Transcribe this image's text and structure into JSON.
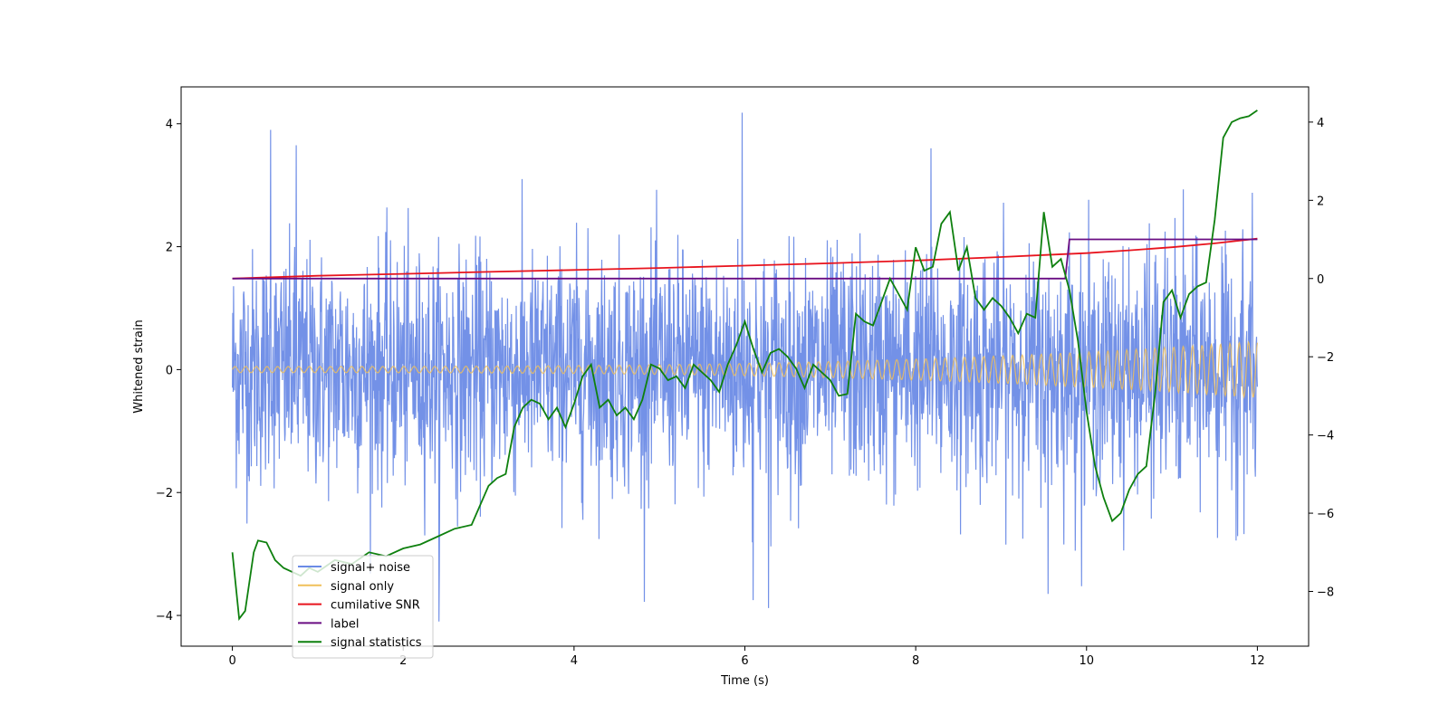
{
  "chart_data": {
    "type": "line",
    "title": "",
    "xlabel": "Time (s)",
    "ylabel": "Whitened strain",
    "xlim": [
      -0.6,
      12.6
    ],
    "ylim_left": [
      -4.5,
      4.6
    ],
    "ylim_right": [
      -9.4,
      4.9
    ],
    "x_ticks": [
      0,
      2,
      4,
      6,
      8,
      10,
      12
    ],
    "y_ticks_left": [
      -4,
      -2,
      0,
      2,
      4
    ],
    "y_ticks_right": [
      -8,
      -6,
      -4,
      -2,
      0,
      2,
      4
    ],
    "legend_position": "lower-left",
    "series": [
      {
        "name": "signal+ noise",
        "color": "#6b8be6",
        "axis": "left",
        "style": "dense gaussian noise",
        "noise_std": 0.95,
        "notable_peaks": [
          {
            "x": 0.45,
            "y": 3.9
          },
          {
            "x": 0.75,
            "y": 3.65
          },
          {
            "x": 5.97,
            "y": 4.18
          },
          {
            "x": 8.18,
            "y": 3.6
          },
          {
            "x": 6.28,
            "y": -3.88
          },
          {
            "x": 2.42,
            "y": -4.1
          },
          {
            "x": 9.55,
            "y": -3.65
          },
          {
            "x": 6.1,
            "y": -3.75
          }
        ]
      },
      {
        "name": "signal only",
        "color": "#f0c05a",
        "axis": "left",
        "style": "chirp",
        "amplitude_start": 0.05,
        "amplitude_end": 0.46
      },
      {
        "name": "cumilative SNR",
        "color": "#e8141e",
        "axis": "right",
        "x": [
          0,
          1,
          2,
          3,
          4,
          5,
          6,
          7,
          8,
          9,
          9.5,
          10,
          10.5,
          11,
          11.5,
          12
        ],
        "values": [
          0.0,
          0.07,
          0.12,
          0.17,
          0.22,
          0.27,
          0.33,
          0.39,
          0.46,
          0.55,
          0.6,
          0.65,
          0.72,
          0.8,
          0.9,
          1.02
        ]
      },
      {
        "name": "label",
        "color": "#6a0d83",
        "axis": "right",
        "x": [
          0,
          9.75,
          9.8,
          12
        ],
        "values": [
          0,
          0,
          1,
          1
        ]
      },
      {
        "name": "signal statistics",
        "color": "#0e800e",
        "axis": "right",
        "x": [
          0,
          0.08,
          0.15,
          0.25,
          0.3,
          0.4,
          0.5,
          0.6,
          0.7,
          0.8,
          0.9,
          1.0,
          1.2,
          1.4,
          1.6,
          1.8,
          2.0,
          2.2,
          2.4,
          2.6,
          2.8,
          3.0,
          3.1,
          3.2,
          3.3,
          3.4,
          3.5,
          3.6,
          3.7,
          3.8,
          3.9,
          4.0,
          4.1,
          4.2,
          4.3,
          4.4,
          4.5,
          4.6,
          4.7,
          4.8,
          4.9,
          5.0,
          5.1,
          5.2,
          5.3,
          5.4,
          5.5,
          5.6,
          5.7,
          5.8,
          5.9,
          6.0,
          6.1,
          6.2,
          6.3,
          6.4,
          6.5,
          6.6,
          6.7,
          6.8,
          6.9,
          7.0,
          7.1,
          7.2,
          7.3,
          7.4,
          7.5,
          7.6,
          7.7,
          7.8,
          7.9,
          8.0,
          8.1,
          8.2,
          8.3,
          8.4,
          8.5,
          8.6,
          8.7,
          8.8,
          8.9,
          9.0,
          9.1,
          9.2,
          9.3,
          9.4,
          9.5,
          9.6,
          9.7,
          9.8,
          9.9,
          10.0,
          10.1,
          10.2,
          10.3,
          10.4,
          10.5,
          10.6,
          10.7,
          10.8,
          10.9,
          11.0,
          11.1,
          11.2,
          11.3,
          11.4,
          11.5,
          11.6,
          11.7,
          11.8,
          11.9,
          12.0
        ],
        "values": [
          -7.0,
          -8.7,
          -8.5,
          -7.0,
          -6.7,
          -6.75,
          -7.2,
          -7.4,
          -7.5,
          -7.6,
          -7.4,
          -7.5,
          -7.2,
          -7.3,
          -7.0,
          -7.1,
          -6.9,
          -6.8,
          -6.6,
          -6.4,
          -6.3,
          -5.3,
          -5.1,
          -5.0,
          -3.8,
          -3.3,
          -3.1,
          -3.2,
          -3.6,
          -3.3,
          -3.8,
          -3.2,
          -2.5,
          -2.2,
          -3.3,
          -3.1,
          -3.5,
          -3.3,
          -3.6,
          -3.1,
          -2.2,
          -2.3,
          -2.6,
          -2.5,
          -2.8,
          -2.2,
          -2.4,
          -2.6,
          -2.9,
          -2.2,
          -1.7,
          -1.1,
          -1.8,
          -2.4,
          -1.9,
          -1.8,
          -2.0,
          -2.3,
          -2.8,
          -2.2,
          -2.4,
          -2.6,
          -3.0,
          -2.95,
          -0.9,
          -1.1,
          -1.2,
          -0.6,
          0.0,
          -0.4,
          -0.8,
          0.8,
          0.2,
          0.3,
          1.4,
          1.7,
          0.2,
          0.8,
          -0.5,
          -0.8,
          -0.5,
          -0.7,
          -1.0,
          -1.4,
          -0.9,
          -1.0,
          1.7,
          0.3,
          0.5,
          -0.3,
          -1.6,
          -3.4,
          -4.8,
          -5.6,
          -6.2,
          -6.0,
          -5.4,
          -5.0,
          -4.8,
          -3.0,
          -0.6,
          -0.3,
          -1.0,
          -0.4,
          -0.2,
          -0.1,
          1.5,
          3.6,
          4.0,
          4.1,
          4.15,
          4.3
        ]
      }
    ]
  },
  "legend": {
    "items": [
      {
        "label": "signal+ noise",
        "color": "#6b8be6"
      },
      {
        "label": "signal only",
        "color": "#f0c05a"
      },
      {
        "label": "cumilative SNR",
        "color": "#e8141e"
      },
      {
        "label": "label",
        "color": "#6a0d83"
      },
      {
        "label": "signal statistics",
        "color": "#0e800e"
      }
    ]
  }
}
